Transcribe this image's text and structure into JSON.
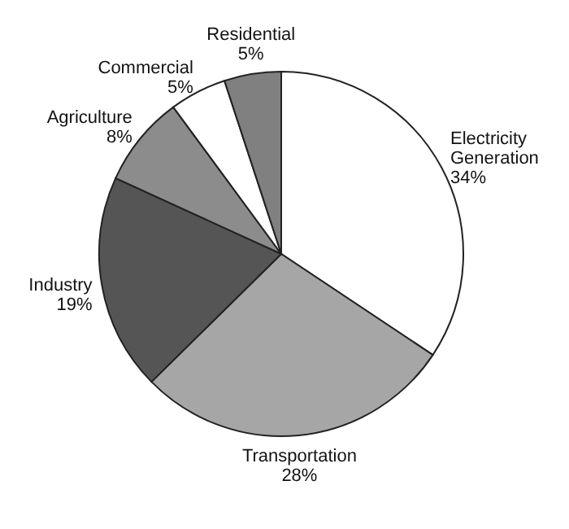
{
  "chart_data": {
    "type": "pie",
    "categories": [
      "Electricity Generation",
      "Transportation",
      "Industry",
      "Agriculture",
      "Commercial",
      "Residential"
    ],
    "values": [
      34,
      28,
      19,
      8,
      5,
      5
    ],
    "colors": [
      "#ffffff",
      "#a6a6a6",
      "#555555",
      "#8c8c8c",
      "#ffffff",
      "#808080"
    ],
    "value_labels": [
      "34%",
      "28%",
      "19%",
      "8%",
      "5%",
      "5%"
    ]
  }
}
